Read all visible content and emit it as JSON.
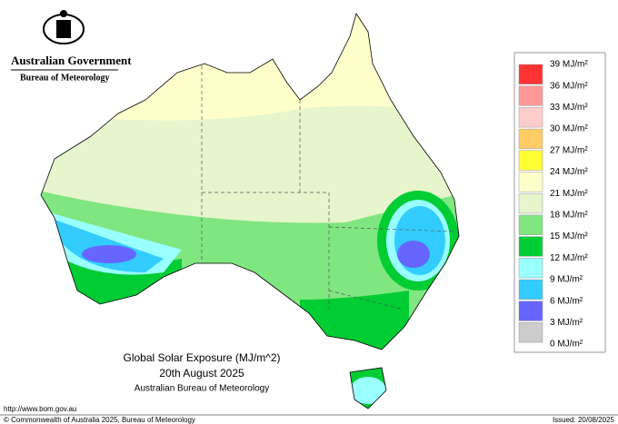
{
  "header": {
    "government": "Australian Government",
    "agency": "Bureau of Meteorology"
  },
  "title": {
    "line1": "Global Solar Exposure (MJ/m^2)",
    "line2": "20th August 2025",
    "line3": "Australian Bureau of Meteorology"
  },
  "legend": {
    "labels": [
      "39 MJ/m²",
      "36 MJ/m²",
      "33 MJ/m²",
      "30 MJ/m²",
      "27 MJ/m²",
      "24 MJ/m²",
      "21 MJ/m²",
      "18 MJ/m²",
      "15 MJ/m²",
      "12 MJ/m²",
      "9 MJ/m²",
      "6 MJ/m²",
      "3 MJ/m²",
      "0 MJ/m²"
    ],
    "colors": [
      "#ff3333",
      "#ff9999",
      "#ffcccc",
      "#ffcc66",
      "#ffff33",
      "#ffffcc",
      "#e6f5cc",
      "#80e680",
      "#00cc33",
      "#99ffff",
      "#33ccff",
      "#6666ff",
      "#cccccc"
    ]
  },
  "footer": {
    "url": "http://www.bom.gov.au",
    "copyright": "© Commonwealth of Australia 2025, Bureau of Meteorology",
    "issued": "Issued: 20/08/2025"
  }
}
